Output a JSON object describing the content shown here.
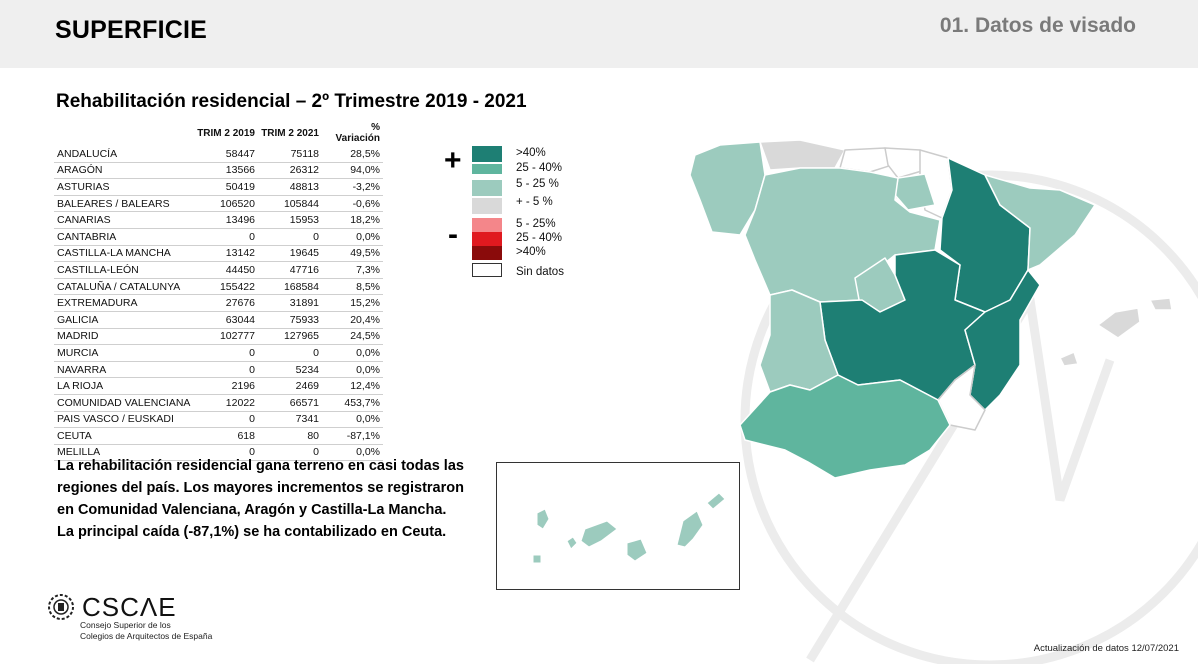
{
  "header": {
    "section": "SUPERFICIE",
    "subtitle": "01. Datos de visado"
  },
  "title": "Rehabilitación residencial – 2º Trimestre 2019 - 2021",
  "table": {
    "columns": [
      "",
      "TRIM 2 2019",
      "TRIM 2 2021",
      "% Variación"
    ],
    "rows": [
      [
        "ANDALUCÍA",
        "58447",
        "75118",
        "28,5%"
      ],
      [
        "ARAGÓN",
        "13566",
        "26312",
        "94,0%"
      ],
      [
        "ASTURIAS",
        "50419",
        "48813",
        "-3,2%"
      ],
      [
        "BALEARES / BALEARS",
        "106520",
        "105844",
        "-0,6%"
      ],
      [
        "CANARIAS",
        "13496",
        "15953",
        "18,2%"
      ],
      [
        "CANTABRIA",
        "0",
        "0",
        "0,0%"
      ],
      [
        "CASTILLA-LA MANCHA",
        "13142",
        "19645",
        "49,5%"
      ],
      [
        "CASTILLA-LEÓN",
        "44450",
        "47716",
        "7,3%"
      ],
      [
        "CATALUÑA / CATALUNYA",
        "155422",
        "168584",
        "8,5%"
      ],
      [
        "EXTREMADURA",
        "27676",
        "31891",
        "15,2%"
      ],
      [
        "GALICIA",
        "63044",
        "75933",
        "20,4%"
      ],
      [
        "MADRID",
        "102777",
        "127965",
        "24,5%"
      ],
      [
        "MURCIA",
        "0",
        "0",
        "0,0%"
      ],
      [
        "NAVARRA",
        "0",
        "5234",
        "0,0%"
      ],
      [
        "LA RIOJA",
        "2196",
        "2469",
        "12,4%"
      ],
      [
        "COMUNIDAD VALENCIANA",
        "12022",
        "66571",
        "453,7%"
      ],
      [
        "PAIS VASCO / EUSKADI",
        "0",
        "7341",
        "0,0%"
      ],
      [
        "CEUTA",
        "618",
        "80",
        "-87,1%"
      ],
      [
        "MELILLA",
        "0",
        "0",
        "0,0%"
      ]
    ]
  },
  "legend": {
    "plus": "+",
    "minus": "-",
    "items": [
      {
        "label": ">40%",
        "color": "#1e7f74"
      },
      {
        "label": "25 - 40%",
        "color": "#5fb59e"
      },
      {
        "label": "5 - 25 %",
        "color": "#9ccbbe"
      },
      {
        "label": "+ - 5 %",
        "color": "#d9d9d9"
      },
      {
        "label": "5 - 25%",
        "color": "#f4868a"
      },
      {
        "label": "25 - 40%",
        "color": "#e0191f"
      },
      {
        "label": ">40%",
        "color": "#8a0b0b"
      },
      {
        "label": "Sin datos",
        "color": "#ffffff"
      }
    ]
  },
  "map_colors": {
    "galicia": "#9ccbbe",
    "asturias": "#d9d9d9",
    "cantabria": "#ffffff",
    "pais_vasco": "#ffffff",
    "navarra": "#ffffff",
    "la_rioja": "#9ccbbe",
    "aragon": "#1e7f74",
    "cataluna": "#9ccbbe",
    "castilla_leon": "#9ccbbe",
    "madrid": "#9ccbbe",
    "castilla_la_mancha": "#1e7f74",
    "valenciana": "#1e7f74",
    "extremadura": "#9ccbbe",
    "andalucia": "#5fb59e",
    "murcia": "#ffffff",
    "baleares": "#d9d9d9",
    "canarias": "#9ccbbe"
  },
  "body_text": [
    "La rehabilitación residencial gana terreno en casi todas las",
    "regiones del país. Los mayores incrementos se registraron",
    "en Comunidad Valenciana, Aragón y Castilla-La Mancha.",
    "La principal caída (-87,1%) se ha contabilizado en Ceuta."
  ],
  "logo": {
    "name": "CSCΛE",
    "line1": "Consejo Superior de los",
    "line2": "Colegios de Arquitectos de España"
  },
  "footer": "Actualización de datos 12/07/2021"
}
